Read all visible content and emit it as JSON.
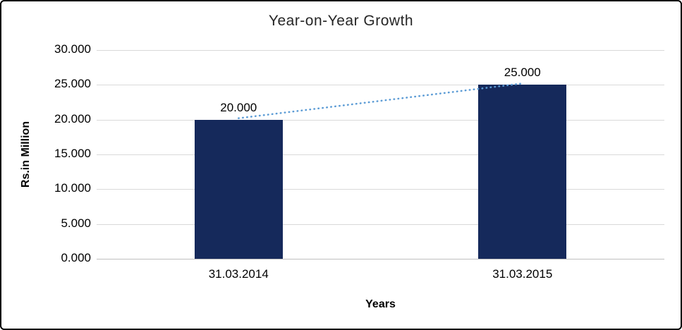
{
  "chart_data": {
    "type": "bar",
    "title": "Year-on-Year Growth",
    "xlabel": "Years",
    "ylabel": "Rs.in Million",
    "categories": [
      "31.03.2014",
      "31.03.2015"
    ],
    "values": [
      20.0,
      25.0
    ],
    "value_labels": [
      "20.000",
      "25.000"
    ],
    "ylim": [
      0,
      30
    ],
    "ytick_step": 5,
    "yticks": [
      "0.000",
      "5.000",
      "10.000",
      "15.000",
      "20.000",
      "25.000",
      "30.000"
    ],
    "grid": true,
    "legend": "none",
    "bar_color": "#15295B",
    "trendline": {
      "style": "dotted",
      "color": "#5B9BD5",
      "from": [
        0,
        20.0
      ],
      "to": [
        1,
        25.0
      ]
    }
  },
  "colors": {
    "gridline": "#D9D9D9",
    "axis_line": "#BFBFBF",
    "text": "#000000",
    "frame_border": "#000000",
    "background": "#FFFFFF"
  }
}
